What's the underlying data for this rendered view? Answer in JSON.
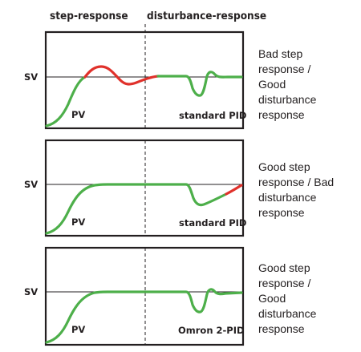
{
  "headers": {
    "left": "step-response",
    "right": "disturbance-response"
  },
  "sv_label": "SV",
  "colors": {
    "good": "#4daf4a",
    "bad": "#e0312b",
    "frame": "#231f20"
  },
  "panels": [
    {
      "pv_label": "PV",
      "controller": "standard PID",
      "description": [
        "Bad step",
        "response /",
        "Good",
        "disturbance",
        "response"
      ]
    },
    {
      "pv_label": "PV",
      "controller": "standard PID",
      "description": [
        "Good step",
        "response / Bad",
        "disturbance",
        "response"
      ]
    },
    {
      "pv_label": "PV",
      "controller": "Omron 2-PID",
      "description": [
        "Good step",
        "response /",
        "Good",
        "disturbance",
        "response"
      ]
    }
  ]
}
